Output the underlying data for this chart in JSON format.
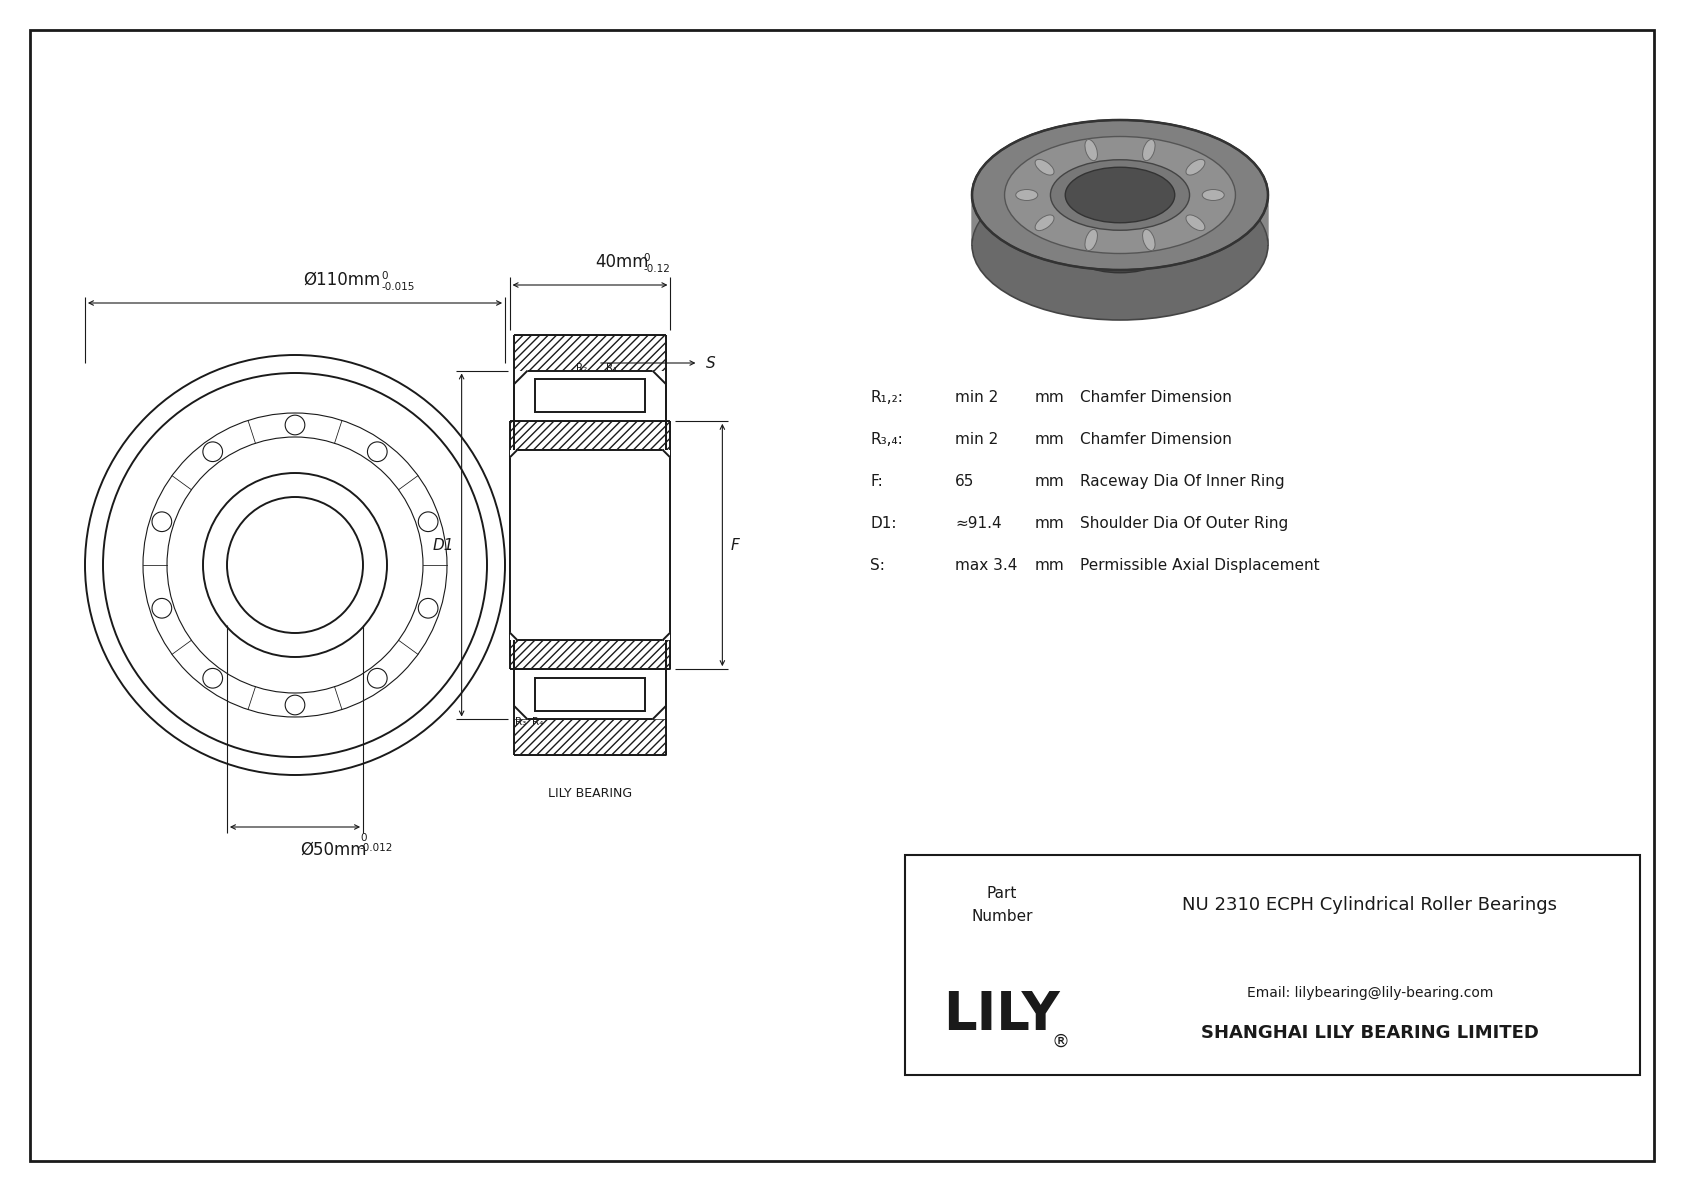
{
  "bg_color": "#ffffff",
  "line_color": "#1a1a1a",
  "company": "SHANGHAI LILY BEARING LIMITED",
  "email": "Email: lilybearing@lily-bearing.com",
  "part_label": "Part\nNumber",
  "part_number": "NU 2310 ECPH Cylindrical Roller Bearings",
  "dim_label_outer": "Ø110mm",
  "dim_tol_outer_top": "0",
  "dim_tol_outer_bot": "-0.015",
  "dim_label_inner": "Ø50mm",
  "dim_tol_inner_top": "0",
  "dim_tol_inner_bot": "-0.012",
  "dim_width": "40mm",
  "dim_width_tol_top": "0",
  "dim_width_tol_bot": "-0.12",
  "params": [
    [
      "R₁,₂:",
      "min 2",
      "mm",
      "Chamfer Dimension"
    ],
    [
      "R₃,₄:",
      "min 2",
      "mm",
      "Chamfer Dimension"
    ],
    [
      "F:",
      "65",
      "mm",
      "Raceway Dia Of Inner Ring"
    ],
    [
      "D1:",
      "≈91.4",
      "mm",
      "Shoulder Dia Of Outer Ring"
    ],
    [
      "S:",
      "max 3.4",
      "mm",
      "Permissible Axial Displacement"
    ]
  ],
  "lily_bearing_label": "LILY BEARING"
}
